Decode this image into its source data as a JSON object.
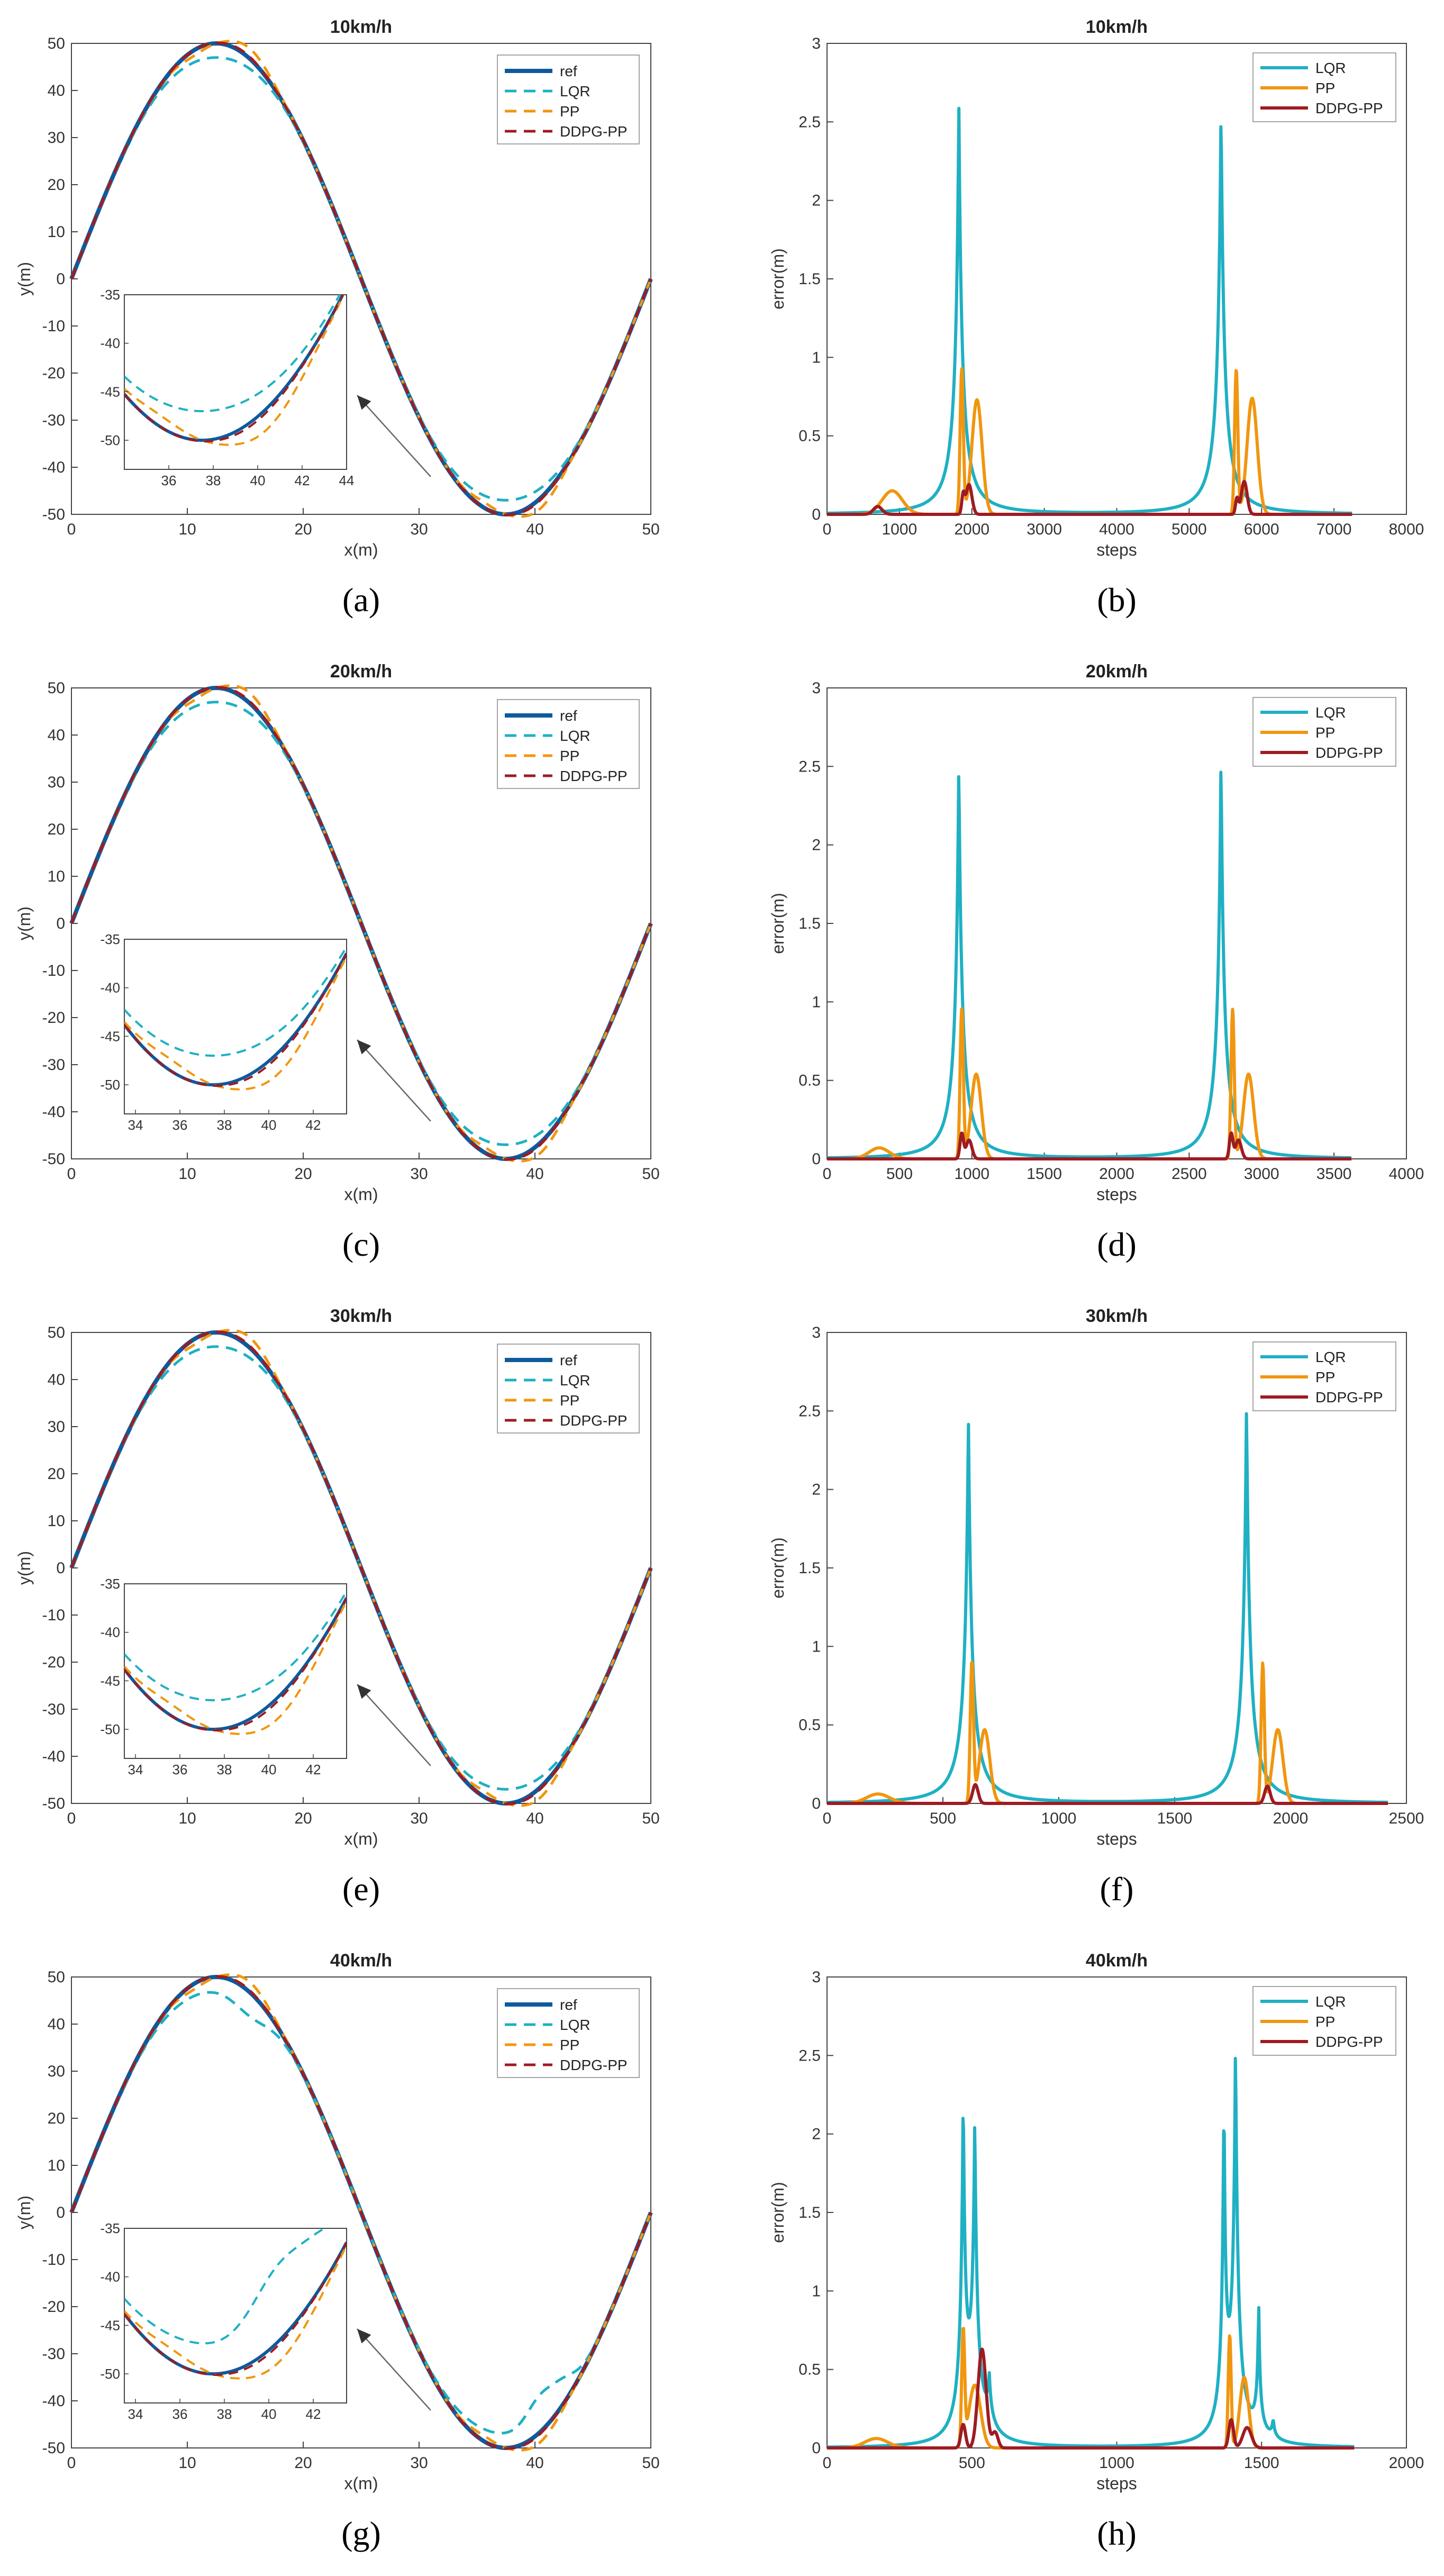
{
  "colors": {
    "ref": "#0e5a9c",
    "LQR": "#1fb0c3",
    "PP": "#f0960f",
    "DDPG": "#9e1b22",
    "axis": "#444444"
  },
  "chart_data": [
    {
      "panel": "a",
      "caption": "(a)",
      "type": "line",
      "title": "10km/h",
      "xlabel": "x(m)",
      "ylabel": "y(m)",
      "xlim": [
        0,
        50
      ],
      "ylim": [
        -50,
        50
      ],
      "xticks": [
        "0",
        "10",
        "20",
        "30",
        "40",
        "50"
      ],
      "yticks": [
        "-50",
        "-40",
        "-30",
        "-20",
        "-10",
        "0",
        "10",
        "20",
        "30",
        "40",
        "50"
      ],
      "legend": [
        "ref",
        "LQR",
        "PP",
        "DDPG-PP"
      ],
      "inset": {
        "xlim": [
          34,
          44
        ],
        "ylim": [
          -53,
          -35
        ],
        "xticks": [
          "36",
          "38",
          "40",
          "42",
          "44"
        ],
        "yticks": [
          "-50",
          "-45",
          "-40",
          "-35"
        ]
      }
    },
    {
      "panel": "b",
      "caption": "(b)",
      "type": "line",
      "title": "10km/h",
      "xlabel": "steps",
      "ylabel": "error(m)",
      "xlim": [
        0,
        8000
      ],
      "ylim": [
        0,
        3
      ],
      "xmax_data": 7250,
      "xticks": [
        "0",
        "1000",
        "2000",
        "3000",
        "4000",
        "5000",
        "6000",
        "7000",
        "8000"
      ],
      "yticks": [
        "0",
        "0.5",
        "1",
        "1.5",
        "2",
        "2.5",
        "3"
      ],
      "legend": [
        "LQR",
        "PP",
        "DDPG-PP"
      ],
      "series": [
        {
          "name": "LQR",
          "peaks": [
            [
              1820,
              2.62,
              90
            ],
            [
              5440,
              2.62,
              90
            ]
          ]
        },
        {
          "name": "PP",
          "peaks": [
            [
              900,
              0.15,
              140
            ],
            [
              1860,
              0.92,
              22
            ],
            [
              2070,
              0.73,
              70
            ],
            [
              5650,
              0.92,
              22
            ],
            [
              5870,
              0.74,
              70
            ]
          ]
        },
        {
          "name": "DDPG-PP",
          "peaks": [
            [
              700,
              0.05,
              60
            ],
            [
              1880,
              0.12,
              20
            ],
            [
              1960,
              0.19,
              40
            ],
            [
              5660,
              0.1,
              20
            ],
            [
              5760,
              0.21,
              40
            ]
          ]
        }
      ]
    },
    {
      "panel": "c",
      "caption": "(c)",
      "type": "line",
      "title": "20km/h",
      "xlabel": "x(m)",
      "ylabel": "y(m)",
      "xlim": [
        0,
        50
      ],
      "ylim": [
        -50,
        50
      ],
      "xticks": [
        "0",
        "10",
        "20",
        "30",
        "40",
        "50"
      ],
      "yticks": [
        "-50",
        "-40",
        "-30",
        "-20",
        "-10",
        "0",
        "10",
        "20",
        "30",
        "40",
        "50"
      ],
      "legend": [
        "ref",
        "LQR",
        "PP",
        "DDPG-PP"
      ],
      "inset": {
        "xlim": [
          33.5,
          43.5
        ],
        "ylim": [
          -53,
          -35
        ],
        "xticks": [
          "34",
          "36",
          "38",
          "40",
          "42"
        ],
        "yticks": [
          "-50",
          "-45",
          "-40",
          "-35"
        ]
      }
    },
    {
      "panel": "d",
      "caption": "(d)",
      "type": "line",
      "title": "20km/h",
      "xlabel": "steps",
      "ylabel": "error(m)",
      "xlim": [
        0,
        4000
      ],
      "ylim": [
        0,
        3
      ],
      "xmax_data": 3620,
      "xticks": [
        "0",
        "500",
        "1000",
        "1500",
        "2000",
        "2500",
        "3000",
        "3500",
        "4000"
      ],
      "yticks": [
        "0",
        "0.5",
        "1",
        "1.5",
        "2",
        "2.5",
        "3"
      ],
      "legend": [
        "LQR",
        "PP",
        "DDPG-PP"
      ],
      "series": [
        {
          "name": "LQR",
          "peaks": [
            [
              910,
              2.55,
              45
            ],
            [
              2720,
              2.58,
              45
            ]
          ]
        },
        {
          "name": "PP",
          "peaks": [
            [
              360,
              0.07,
              70
            ],
            [
              930,
              0.95,
              11
            ],
            [
              1030,
              0.54,
              35
            ],
            [
              2800,
              0.95,
              11
            ],
            [
              2910,
              0.54,
              35
            ]
          ]
        },
        {
          "name": "DDPG-PP",
          "peaks": [
            [
              930,
              0.16,
              12
            ],
            [
              980,
              0.12,
              20
            ],
            [
              2790,
              0.16,
              12
            ],
            [
              2840,
              0.12,
              20
            ]
          ]
        }
      ]
    },
    {
      "panel": "e",
      "caption": "(e)",
      "type": "line",
      "title": "30km/h",
      "xlabel": "x(m)",
      "ylabel": "y(m)",
      "xlim": [
        0,
        50
      ],
      "ylim": [
        -50,
        50
      ],
      "xticks": [
        "0",
        "10",
        "20",
        "30",
        "40",
        "50"
      ],
      "yticks": [
        "-50",
        "-40",
        "-30",
        "-20",
        "-10",
        "0",
        "10",
        "20",
        "30",
        "40",
        "50"
      ],
      "legend": [
        "ref",
        "LQR",
        "PP",
        "DDPG-PP"
      ],
      "inset": {
        "xlim": [
          33.5,
          43.5
        ],
        "ylim": [
          -53,
          -35
        ],
        "xticks": [
          "34",
          "36",
          "38",
          "40",
          "42"
        ],
        "yticks": [
          "-50",
          "-45",
          "-40",
          "-35"
        ]
      }
    },
    {
      "panel": "f",
      "caption": "(f)",
      "type": "line",
      "title": "30km/h",
      "xlabel": "steps",
      "ylabel": "error(m)",
      "xlim": [
        0,
        2500
      ],
      "ylim": [
        0,
        3
      ],
      "xmax_data": 2420,
      "xticks": [
        "0",
        "500",
        "1000",
        "1500",
        "2000",
        "2500"
      ],
      "yticks": [
        "0",
        "0.5",
        "1",
        "1.5",
        "2",
        "2.5",
        "3"
      ],
      "legend": [
        "LQR",
        "PP",
        "DDPG-PP"
      ],
      "series": [
        {
          "name": "LQR",
          "peaks": [
            [
              610,
              2.48,
              30
            ],
            [
              1810,
              2.55,
              30
            ]
          ]
        },
        {
          "name": "PP",
          "peaks": [
            [
              220,
              0.06,
              50
            ],
            [
              625,
              0.89,
              7
            ],
            [
              680,
              0.47,
              22
            ],
            [
              1880,
              0.89,
              7
            ],
            [
              1945,
              0.47,
              22
            ]
          ]
        },
        {
          "name": "DDPG-PP",
          "peaks": [
            [
              640,
              0.12,
              12
            ],
            [
              1900,
              0.11,
              12
            ]
          ]
        }
      ]
    },
    {
      "panel": "g",
      "caption": "(g)",
      "type": "line",
      "title": "40km/h",
      "xlabel": "x(m)",
      "ylabel": "y(m)",
      "xlim": [
        0,
        50
      ],
      "ylim": [
        -50,
        50
      ],
      "xticks": [
        "0",
        "10",
        "20",
        "30",
        "40",
        "50"
      ],
      "yticks": [
        "-50",
        "-40",
        "-30",
        "-20",
        "-10",
        "0",
        "10",
        "20",
        "30",
        "40",
        "50"
      ],
      "legend": [
        "ref",
        "LQR",
        "PP",
        "DDPG-PP"
      ],
      "inset": {
        "xlim": [
          33.5,
          43.5
        ],
        "ylim": [
          -53,
          -35
        ],
        "xticks": [
          "34",
          "36",
          "38",
          "40",
          "42"
        ],
        "yticks": [
          "-50",
          "-45",
          "-40",
          "-35"
        ]
      }
    },
    {
      "panel": "h",
      "caption": "(h)",
      "type": "line",
      "title": "40km/h",
      "xlabel": "steps",
      "ylabel": "error(m)",
      "xlim": [
        0,
        2000
      ],
      "ylim": [
        0,
        3
      ],
      "xmax_data": 1820,
      "xticks": [
        "0",
        "500",
        "1000",
        "1500",
        "2000"
      ],
      "yticks": [
        "0",
        "0.5",
        "1",
        "1.5",
        "2",
        "2.5",
        "3"
      ],
      "legend": [
        "LQR",
        "PP",
        "DDPG-PP"
      ],
      "series": [
        {
          "name": "LQR",
          "peaks": [
            [
              470,
              2.15,
              15
            ],
            [
              510,
              1.95,
              18
            ],
            [
              560,
              0.3,
              15
            ],
            [
              1370,
              2.1,
              12
            ],
            [
              1410,
              2.5,
              18
            ],
            [
              1490,
              0.85,
              10
            ],
            [
              1540,
              0.12,
              10
            ]
          ]
        },
        {
          "name": "PP",
          "peaks": [
            [
              170,
              0.06,
              40
            ],
            [
              470,
              0.72,
              5
            ],
            [
              510,
              0.4,
              20
            ],
            [
              1390,
              0.72,
              5
            ],
            [
              1440,
              0.45,
              15
            ]
          ]
        },
        {
          "name": "DDPG-PP",
          "peaks": [
            [
              470,
              0.15,
              8
            ],
            [
              535,
              0.63,
              14
            ],
            [
              580,
              0.1,
              10
            ],
            [
              1395,
              0.18,
              8
            ],
            [
              1450,
              0.13,
              15
            ]
          ]
        }
      ]
    }
  ]
}
